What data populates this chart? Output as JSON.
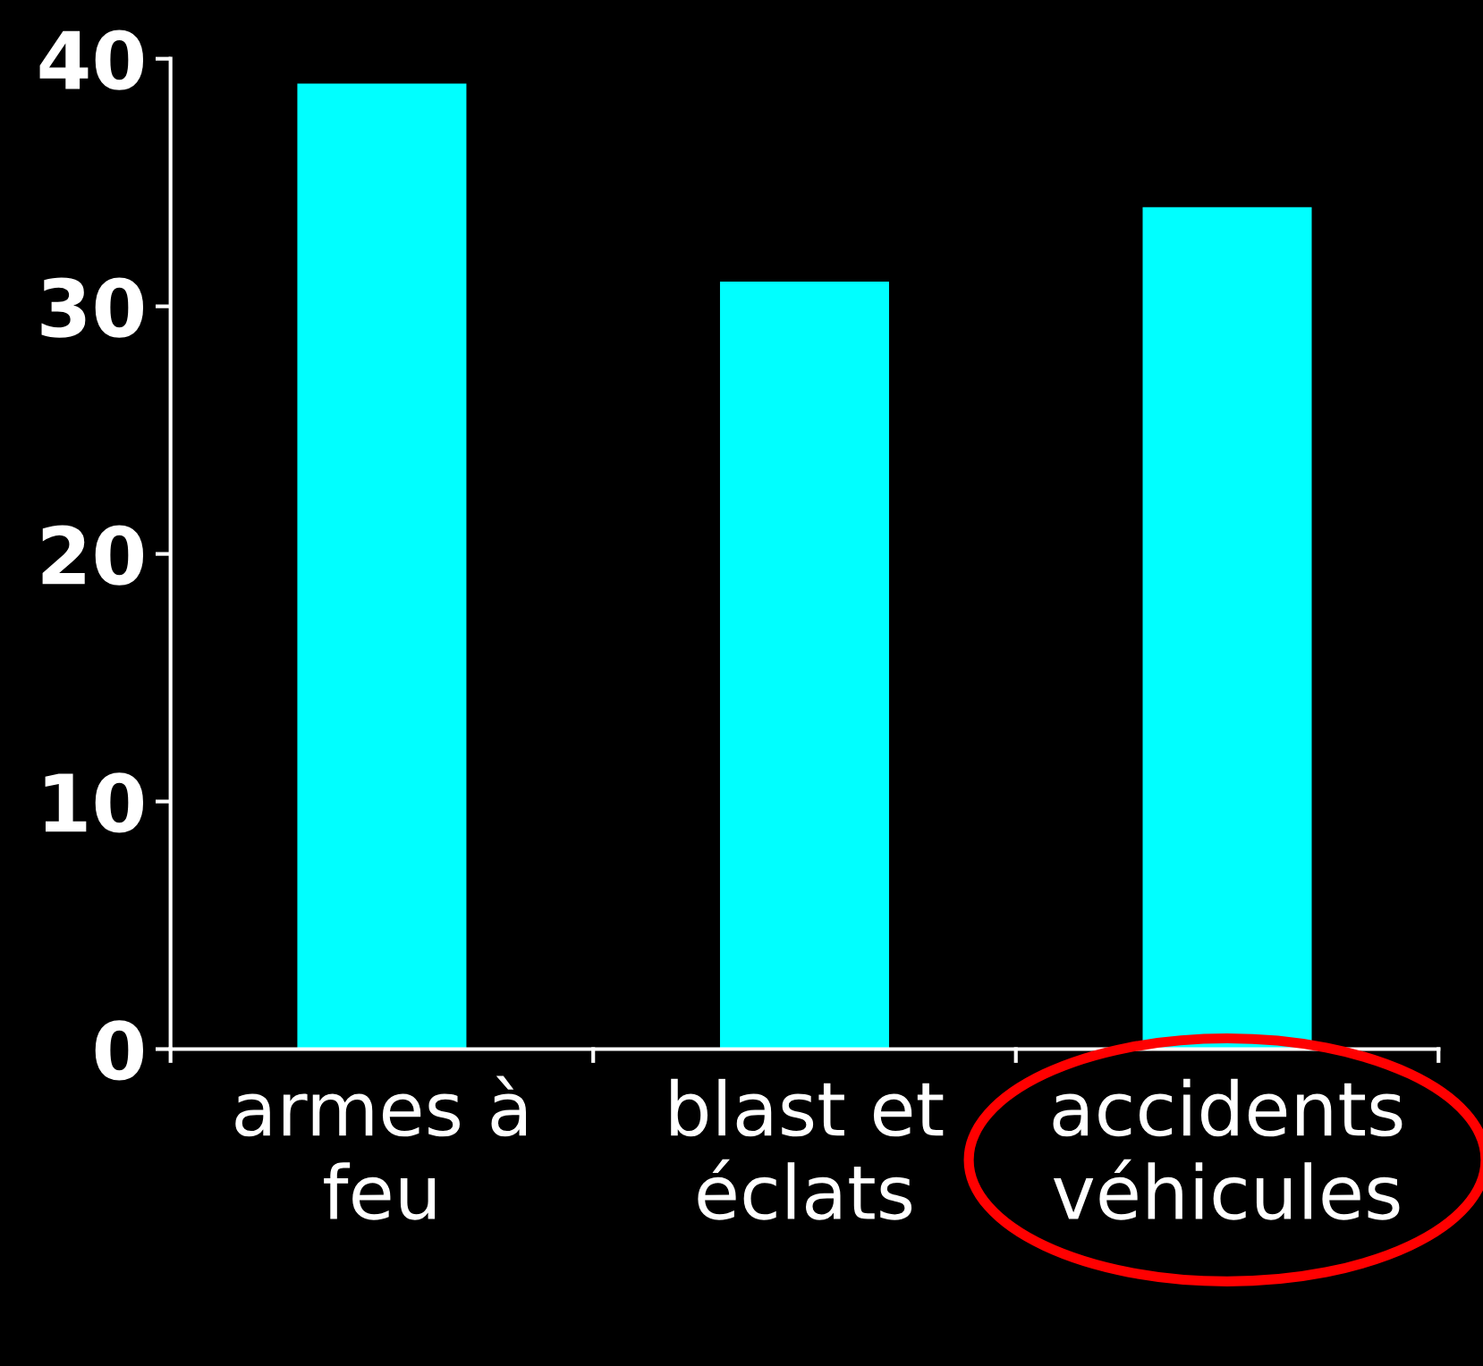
{
  "chart_data": {
    "type": "bar",
    "categories": [
      "armes à feu",
      "blast et éclats",
      "accidents véhicules"
    ],
    "values": [
      39,
      31,
      34
    ],
    "color": "#00ffff",
    "ylim": [
      0,
      40
    ],
    "yticks": [
      0,
      10,
      20,
      30,
      40
    ],
    "grid": false,
    "legend": false
  }
}
